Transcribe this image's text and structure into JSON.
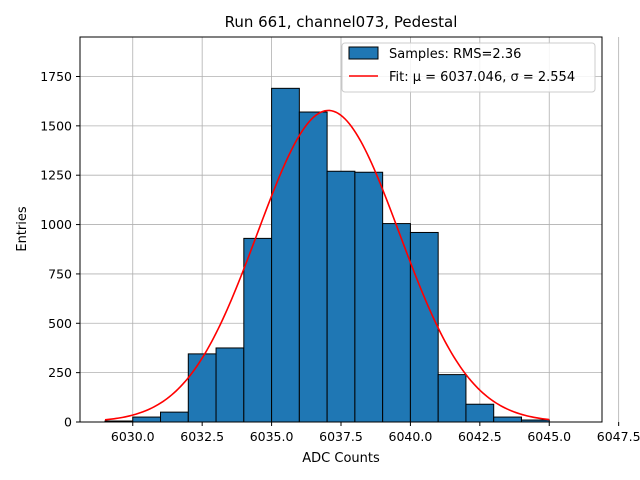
{
  "chart_data": {
    "type": "bar",
    "title": "Run 661, channel073, Pedestal",
    "xlabel": "ADC Counts",
    "ylabel": "Entries",
    "xlim": [
      6028.1,
      6046.9
    ],
    "ylim": [
      0,
      1950
    ],
    "xticks": [
      6030.0,
      6032.5,
      6035.0,
      6037.5,
      6040.0,
      6042.5,
      6045.0,
      6047.5
    ],
    "xtick_labels": [
      "6030.0",
      "6032.5",
      "6035.0",
      "6037.5",
      "6040.0",
      "6042.5",
      "6045.0",
      "6047.5"
    ],
    "yticks": [
      0,
      250,
      500,
      750,
      1000,
      1250,
      1500,
      1750
    ],
    "ytick_labels": [
      "0",
      "250",
      "500",
      "750",
      "1000",
      "1250",
      "1500",
      "1750"
    ],
    "grid": true,
    "legend_position": "top-right",
    "histogram": {
      "name": "Samples: RMS=2.36",
      "color": "#1f77b4",
      "edge_color": "#000000",
      "bin_width": 1,
      "bin_left_edges": [
        6029,
        6030,
        6031,
        6032,
        6033,
        6034,
        6035,
        6036,
        6037,
        6038,
        6039,
        6040,
        6041,
        6042,
        6043,
        6044
      ],
      "counts": [
        5,
        25,
        50,
        345,
        375,
        930,
        1690,
        1570,
        1270,
        1265,
        1005,
        960,
        240,
        90,
        25,
        10
      ]
    },
    "fit": {
      "name": "Fit: μ = 6037.046, σ = 2.554",
      "color": "#ff0000",
      "mu": 6037.046,
      "sigma": 2.554,
      "amplitude": 1578,
      "x_range": [
        6029,
        6045
      ]
    }
  }
}
